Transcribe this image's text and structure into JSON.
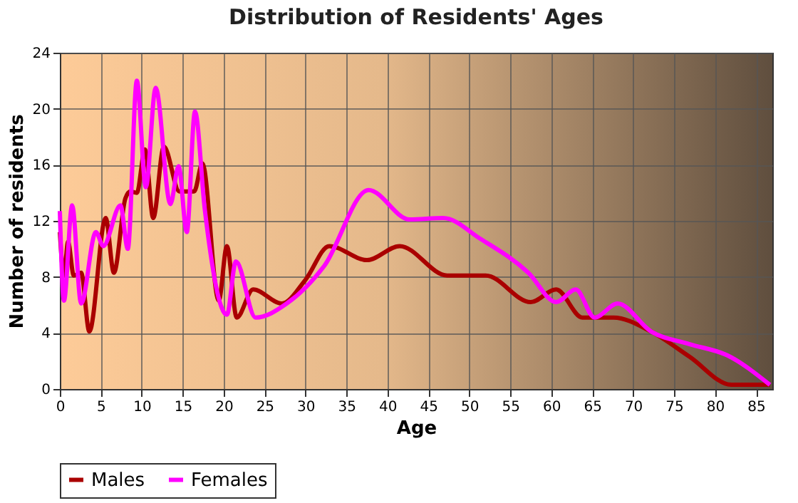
{
  "chart_data": {
    "type": "line",
    "title": "Distribution of Residents' Ages",
    "xlabel": "Age",
    "ylabel": "Number of residents",
    "xlim": [
      0,
      87
    ],
    "xticks": [
      0,
      5,
      10,
      15,
      20,
      25,
      30,
      35,
      40,
      45,
      50,
      55,
      60,
      65,
      70,
      75,
      80,
      85
    ],
    "ylim": [
      0,
      24
    ],
    "yticks": [
      0,
      4,
      8,
      12,
      16,
      20,
      24
    ],
    "grid": true,
    "legend": "bottom",
    "series": [
      {
        "name": "Males",
        "color": "#aa0000",
        "x": [
          0,
          0.5,
          1,
          1.7,
          2.6,
          3.6,
          5.6,
          6.6,
          8,
          8.6,
          9.4,
          10.4,
          11.4,
          12.7,
          14.6,
          16.4,
          17.4,
          19.4,
          20.4,
          21.6,
          23.6,
          27.1,
          30,
          32.9,
          37.5,
          41.5,
          47.3,
          52,
          57.5,
          60.6,
          63.8,
          67.6,
          72.2,
          76.9,
          82,
          86.7
        ],
        "values": [
          11.2,
          8.1,
          10.5,
          8.1,
          8.3,
          4.1,
          12.2,
          8.3,
          13.6,
          14.1,
          14,
          17.1,
          12.2,
          17.3,
          14.1,
          14.1,
          16.1,
          6.3,
          10.2,
          5.1,
          7.1,
          6.1,
          7.8,
          10.2,
          9.2,
          10.2,
          8.1,
          8.1,
          6.2,
          7.1,
          5.1,
          5.1,
          4.1,
          2.3,
          0.3,
          0.3
        ]
      },
      {
        "name": "Females",
        "color": "#ff00ff",
        "x": [
          0,
          0.5,
          1.5,
          2.6,
          4.4,
          5.3,
          7.4,
          8.3,
          9.4,
          10.5,
          11.7,
          13.5,
          14.5,
          15.5,
          16.5,
          17.7,
          20.4,
          21.5,
          23.9,
          27.7,
          32.3,
          37.7,
          42.7,
          46.8,
          51.4,
          57.2,
          60.6,
          63,
          65.3,
          68.1,
          72.2,
          76.9,
          81.5,
          86.7
        ],
        "values": [
          12.7,
          6.3,
          13.1,
          6.1,
          11.2,
          10.2,
          13.1,
          10,
          22,
          14.4,
          21.5,
          13.2,
          15.9,
          11.2,
          19.8,
          12.8,
          5.3,
          9.1,
          5.1,
          6.1,
          8.8,
          14.2,
          12.1,
          12.2,
          10.7,
          8.3,
          6.2,
          7.1,
          5.1,
          6.1,
          4.1,
          3.2,
          2.4,
          0.3
        ]
      }
    ]
  }
}
